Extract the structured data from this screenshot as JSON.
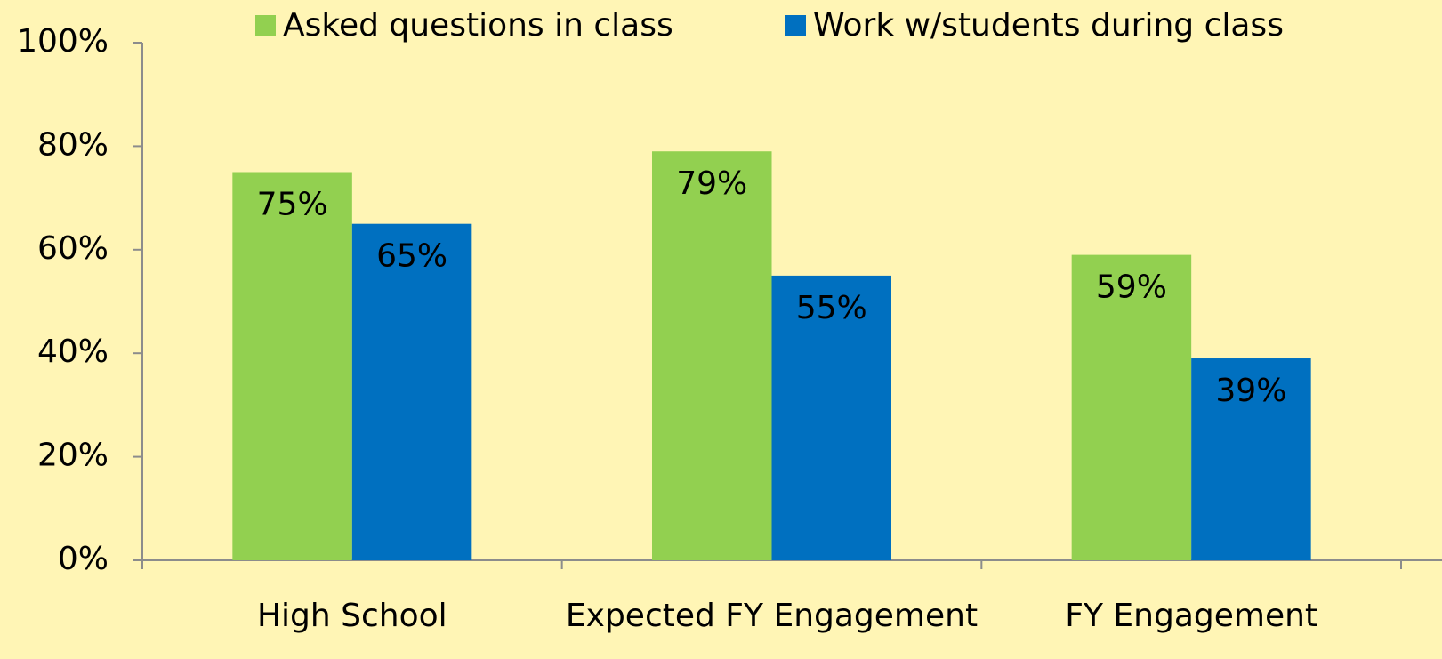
{
  "chart_data": {
    "type": "bar",
    "categories": [
      "High School",
      "Expected FY Engagement",
      "FY Engagement"
    ],
    "series": [
      {
        "name": "Asked questions in class",
        "color": "#92d050",
        "values": [
          75,
          79,
          59
        ],
        "value_labels": [
          "75%",
          "79%",
          "59%"
        ]
      },
      {
        "name": "Work w/students during class",
        "color": "#0070c0",
        "values": [
          65,
          55,
          39
        ],
        "value_labels": [
          "65%",
          "55%",
          "39%"
        ]
      }
    ],
    "ylim": [
      0,
      100
    ],
    "yticks": [
      {
        "value": 0,
        "label": "0%"
      },
      {
        "value": 20,
        "label": "20%"
      },
      {
        "value": 40,
        "label": "40%"
      },
      {
        "value": 60,
        "label": "60%"
      },
      {
        "value": 80,
        "label": "80%"
      },
      {
        "value": 100,
        "label": "100%"
      }
    ],
    "legend": "top",
    "grid": false
  }
}
